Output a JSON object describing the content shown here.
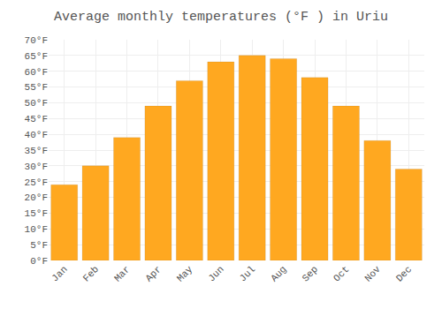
{
  "chart_data": {
    "type": "bar",
    "title": "Average monthly temperatures (°F ) in Uriu",
    "categories": [
      "Jan",
      "Feb",
      "Mar",
      "Apr",
      "May",
      "Jun",
      "Jul",
      "Aug",
      "Sep",
      "Oct",
      "Nov",
      "Dec"
    ],
    "values": [
      24,
      30,
      39,
      49,
      57,
      63,
      65,
      64,
      58,
      49,
      38,
      29
    ],
    "color": "#FFA820",
    "ylim": [
      0,
      70
    ],
    "yticks": [
      {
        "value": 0,
        "label": "0°F"
      },
      {
        "value": 5,
        "label": "5°F"
      },
      {
        "value": 10,
        "label": "10°F"
      },
      {
        "value": 15,
        "label": "15°F"
      },
      {
        "value": 20,
        "label": "20°F"
      },
      {
        "value": 25,
        "label": "25°F"
      },
      {
        "value": 30,
        "label": "30°F"
      },
      {
        "value": 35,
        "label": "35°F"
      },
      {
        "value": 40,
        "label": "40°F"
      },
      {
        "value": 45,
        "label": "45°F"
      },
      {
        "value": 50,
        "label": "50°F"
      },
      {
        "value": 55,
        "label": "55°F"
      },
      {
        "value": 60,
        "label": "60°F"
      },
      {
        "value": 65,
        "label": "65°F"
      },
      {
        "value": 70,
        "label": "70°F"
      }
    ],
    "grid": true
  }
}
